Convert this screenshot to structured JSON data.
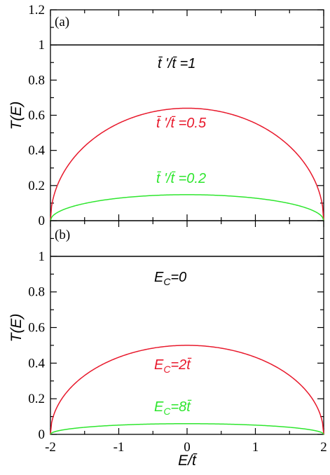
{
  "chart_data": [
    {
      "panel_label": "(a)",
      "type": "line",
      "ylabel": "T(E)",
      "xlabel": "",
      "xlim": [
        -2,
        2
      ],
      "ylim": [
        0,
        1.2
      ],
      "y_ticks": [
        0,
        0.2,
        0.4,
        0.6,
        0.8,
        1,
        1.2
      ],
      "y_tick_labels": [
        "0",
        "0.2",
        "0.4",
        "0.6",
        "0.8",
        "1",
        "1.2"
      ],
      "x_ticks": [
        -2,
        -1,
        0,
        1,
        2
      ],
      "series": [
        {
          "label_text": "t̄ '/t̄ =1",
          "color": "#000000",
          "peak": 1.0,
          "flat": true
        },
        {
          "label_text": "t̄ '/t̄ =0.5",
          "color": "#e8192c",
          "peak": 0.64,
          "flat": false
        },
        {
          "label_text": "t̄ '/t̄ =0.2",
          "color": "#2ee62e",
          "peak": 0.148,
          "flat": false
        }
      ]
    },
    {
      "panel_label": "(b)",
      "type": "line",
      "ylabel": "T(E)",
      "xlabel": "E/t̄",
      "xlim": [
        -2,
        2
      ],
      "ylim": [
        0,
        1.2
      ],
      "y_ticks": [
        0,
        0.2,
        0.4,
        0.6,
        0.8,
        1
      ],
      "y_tick_labels": [
        "0",
        "0.2",
        "0.4",
        "0.6",
        "0.8",
        "1"
      ],
      "x_ticks": [
        -2,
        -1,
        0,
        1,
        2
      ],
      "x_tick_labels": [
        "-2",
        "-1",
        "0",
        "1",
        "2"
      ],
      "series": [
        {
          "label_text": "E_C=0",
          "color": "#000000",
          "peak": 1.0,
          "flat": true
        },
        {
          "label_text": "E_C=2t̄",
          "color": "#e8192c",
          "peak": 0.5,
          "flat": false
        },
        {
          "label_text": "E_C=8t̄",
          "color": "#2ee62e",
          "peak": 0.06,
          "flat": false
        }
      ]
    }
  ],
  "panels": {
    "a": {
      "label": "(a)",
      "ylabel": "T(E)",
      "annot_black": "t̄ '/t̄ =1",
      "annot_red": "t̄ '/t̄ =0.5",
      "annot_green": "t̄ '/t̄ =0.2"
    },
    "b": {
      "label": "(b)",
      "ylabel": "T(E)",
      "xlabel": "E/t̄",
      "annot_black_main": "E",
      "annot_black_sub": "C",
      "annot_black_rest": "=0",
      "annot_red_main": "E",
      "annot_red_sub": "C",
      "annot_red_rest": "=2t̄",
      "annot_green_main": "E",
      "annot_green_sub": "C",
      "annot_green_rest": "=8t̄"
    }
  },
  "colors": {
    "black": "#000000",
    "red": "#e8192c",
    "green": "#2ee62e"
  }
}
